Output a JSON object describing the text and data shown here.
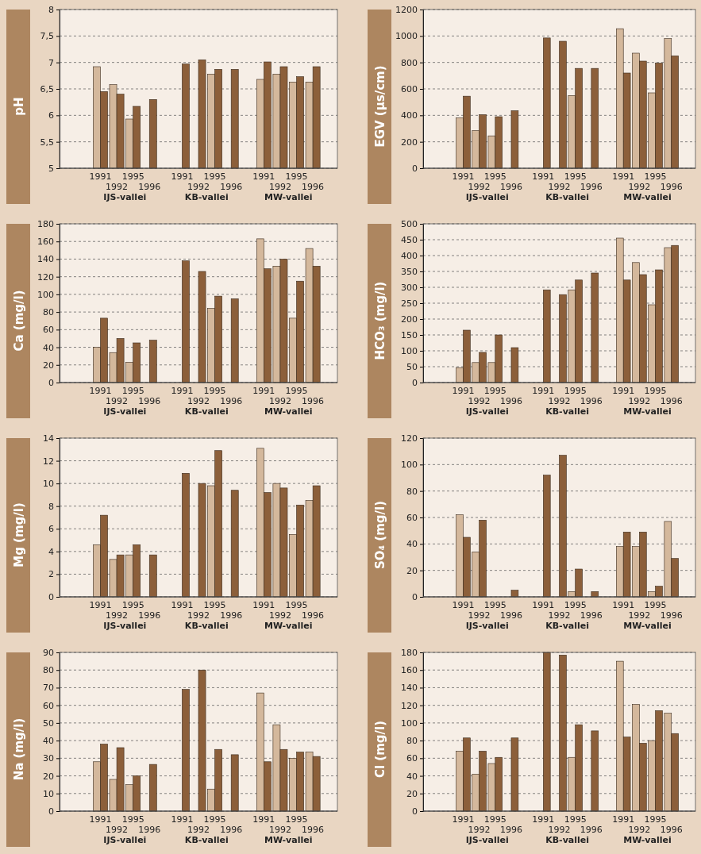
{
  "chart_data": [
    {
      "type": "bar",
      "ylabel": "pH",
      "categories": [
        null,
        null,
        "1991",
        "1992",
        "1995",
        "1996",
        null,
        "1991",
        "1992",
        "1995",
        "1996",
        null,
        "1991",
        "1992",
        "1995",
        "1996",
        null
      ],
      "ylim": [
        5,
        8
      ],
      "yticks": [
        5,
        {
          "value": 5.5,
          "label": "5,5"
        },
        6,
        {
          "value": 6.5,
          "label": "6,5"
        },
        7,
        {
          "value": 7.5,
          "label": "7,5"
        },
        8
      ],
      "grid": "y",
      "annotations": [
        "IJS-vallei",
        "KB-vallei",
        "MW-vallei"
      ],
      "series": [
        {
          "color": "#d4b89c",
          "values": [
            null,
            null,
            6.92,
            6.58,
            5.93,
            null,
            null,
            null,
            null,
            6.78,
            null,
            null,
            6.68,
            6.78,
            6.63,
            6.63,
            null
          ]
        },
        {
          "color": "#8c5f3a",
          "values": [
            null,
            null,
            6.45,
            6.4,
            6.17,
            6.3,
            null,
            6.97,
            7.05,
            6.87,
            6.87,
            null,
            7.01,
            6.92,
            6.73,
            6.92,
            null
          ]
        }
      ]
    },
    {
      "type": "bar",
      "ylabel": "EGV (µs/cm)",
      "categories": [
        null,
        null,
        "1991",
        "1992",
        "1995",
        "1996",
        null,
        "1991",
        "1992",
        "1995",
        "1996",
        null,
        "1991",
        "1992",
        "1995",
        "1996",
        null
      ],
      "ylim": [
        0,
        1200
      ],
      "yticks": [
        0,
        200,
        400,
        600,
        800,
        1000,
        1200
      ],
      "grid": "y",
      "annotations": [
        "IJS-vallei",
        "KB-vallei",
        "MW-vallei"
      ],
      "series": [
        {
          "color": "#d4b89c",
          "values": [
            null,
            null,
            380,
            285,
            245,
            null,
            null,
            null,
            null,
            550,
            null,
            null,
            1055,
            870,
            570,
            980,
            null
          ]
        },
        {
          "color": "#8c5f3a",
          "values": [
            null,
            null,
            545,
            405,
            390,
            435,
            null,
            985,
            960,
            755,
            755,
            null,
            720,
            810,
            795,
            850,
            null
          ]
        }
      ]
    },
    {
      "type": "bar",
      "ylabel": "Ca (mg/l)",
      "categories": [
        null,
        null,
        "1991",
        "1992",
        "1995",
        "1996",
        null,
        "1991",
        "1992",
        "1995",
        "1996",
        null,
        "1991",
        "1992",
        "1995",
        "1996",
        null
      ],
      "ylim": [
        0,
        180
      ],
      "yticks": [
        0,
        20,
        40,
        60,
        80,
        100,
        120,
        140,
        160,
        180
      ],
      "grid": "y",
      "annotations": [
        "IJS-vallei",
        "KB-vallei",
        "MW-vallei"
      ],
      "series": [
        {
          "color": "#d4b89c",
          "values": [
            null,
            null,
            40,
            34,
            23,
            null,
            null,
            null,
            null,
            84,
            null,
            null,
            163,
            132,
            73,
            152,
            null
          ]
        },
        {
          "color": "#8c5f3a",
          "values": [
            null,
            null,
            73,
            50,
            45,
            48,
            null,
            138,
            126,
            98,
            95,
            null,
            129,
            140,
            115,
            132,
            null
          ]
        }
      ]
    },
    {
      "type": "bar",
      "ylabel": "HCO₃ (mg/l)",
      "categories": [
        null,
        null,
        "1991",
        "1992",
        "1995",
        "1996",
        null,
        "1991",
        "1992",
        "1995",
        "1996",
        null,
        "1991",
        "1992",
        "1995",
        "1996",
        null
      ],
      "ylim": [
        0,
        500
      ],
      "yticks": [
        0,
        50,
        100,
        150,
        200,
        250,
        300,
        350,
        400,
        450,
        500
      ],
      "grid": "y",
      "annotations": [
        "IJS-vallei",
        "KB-vallei",
        "MW-vallei"
      ],
      "series": [
        {
          "color": "#d4b89c",
          "values": [
            null,
            null,
            47,
            63,
            63,
            null,
            null,
            null,
            null,
            292,
            null,
            null,
            455,
            378,
            245,
            425,
            null
          ]
        },
        {
          "color": "#8c5f3a",
          "values": [
            null,
            null,
            165,
            95,
            150,
            110,
            null,
            292,
            277,
            323,
            345,
            null,
            323,
            340,
            355,
            432,
            null
          ]
        }
      ]
    },
    {
      "type": "bar",
      "ylabel": "Mg (mg/l)",
      "categories": [
        null,
        null,
        "1991",
        "1992",
        "1995",
        "1996",
        null,
        "1991",
        "1992",
        "1995",
        "1996",
        null,
        "1991",
        "1992",
        "1995",
        "1996",
        null
      ],
      "ylim": [
        0,
        14
      ],
      "yticks": [
        0,
        2,
        4,
        6,
        8,
        10,
        12,
        14
      ],
      "grid": "y",
      "annotations": [
        "IJS-vallei",
        "KB-vallei",
        "MW-vallei"
      ],
      "series": [
        {
          "color": "#d4b89c",
          "values": [
            null,
            null,
            4.6,
            3.3,
            3.7,
            null,
            null,
            null,
            null,
            9.8,
            null,
            null,
            13.1,
            10.0,
            5.5,
            8.5,
            null
          ]
        },
        {
          "color": "#8c5f3a",
          "values": [
            null,
            null,
            7.2,
            3.7,
            4.6,
            3.7,
            null,
            10.9,
            10.0,
            12.9,
            9.4,
            null,
            9.2,
            9.6,
            8.1,
            9.8,
            null
          ]
        }
      ]
    },
    {
      "type": "bar",
      "ylabel": "SO₄ (mg/l)",
      "categories": [
        null,
        null,
        "1991",
        "1992",
        "1995",
        "1996",
        null,
        "1991",
        "1992",
        "1995",
        "1996",
        null,
        "1991",
        "1992",
        "1995",
        "1996",
        null
      ],
      "ylim": [
        0,
        120
      ],
      "yticks": [
        0,
        20,
        40,
        60,
        80,
        100,
        120
      ],
      "grid": "y",
      "annotations": [
        "IJS-vallei",
        "KB-vallei",
        "MW-vallei"
      ],
      "series": [
        {
          "color": "#d4b89c",
          "values": [
            null,
            null,
            62,
            34,
            null,
            null,
            null,
            null,
            null,
            4,
            null,
            null,
            38,
            38,
            4,
            57,
            null
          ]
        },
        {
          "color": "#8c5f3a",
          "values": [
            null,
            null,
            45,
            58,
            null,
            5,
            null,
            92,
            107,
            21,
            4,
            null,
            49,
            49,
            8,
            29,
            null
          ]
        }
      ]
    },
    {
      "type": "bar",
      "ylabel": "Na (mg/l)",
      "categories": [
        null,
        null,
        "1991",
        "1992",
        "1995",
        "1996",
        null,
        "1991",
        "1992",
        "1995",
        "1996",
        null,
        "1991",
        "1992",
        "1995",
        "1996",
        null
      ],
      "ylim": [
        0,
        90
      ],
      "yticks": [
        0,
        10,
        20,
        30,
        40,
        50,
        60,
        70,
        80,
        90
      ],
      "grid": "y",
      "annotations": [
        "IJS-vallei",
        "KB-vallei",
        "MW-vallei"
      ],
      "series": [
        {
          "color": "#d4b89c",
          "values": [
            null,
            null,
            28,
            18,
            15,
            null,
            null,
            null,
            null,
            12.5,
            null,
            null,
            67,
            49,
            30,
            33.5,
            null
          ]
        },
        {
          "color": "#8c5f3a",
          "values": [
            null,
            null,
            38,
            36,
            20,
            26.5,
            null,
            69,
            80,
            35,
            32,
            null,
            28,
            35,
            33.5,
            31,
            null
          ]
        }
      ]
    },
    {
      "type": "bar",
      "ylabel": "Cl (mg/l)",
      "categories": [
        null,
        null,
        "1991",
        "1992",
        "1995",
        "1996",
        null,
        "1991",
        "1992",
        "1995",
        "1996",
        null,
        "1991",
        "1992",
        "1995",
        "1996",
        null
      ],
      "ylim": [
        0,
        180
      ],
      "yticks": [
        0,
        20,
        40,
        60,
        80,
        100,
        120,
        140,
        160,
        180
      ],
      "grid": "y",
      "annotations": [
        "IJS-vallei",
        "KB-vallei",
        "MW-vallei"
      ],
      "series": [
        {
          "color": "#d4b89c",
          "values": [
            null,
            null,
            68,
            42,
            54,
            null,
            null,
            null,
            null,
            61,
            null,
            null,
            170,
            121,
            80,
            111,
            null
          ]
        },
        {
          "color": "#8c5f3a",
          "values": [
            null,
            null,
            83,
            68,
            61,
            83,
            null,
            180,
            177,
            98,
            91,
            null,
            84,
            77,
            114,
            88,
            null
          ]
        }
      ]
    }
  ]
}
